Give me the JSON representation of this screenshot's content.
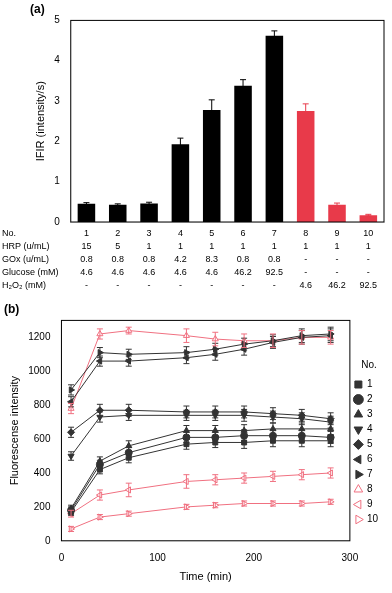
{
  "chart_data": [
    {
      "type": "bar",
      "title": "(a)",
      "y_label": "IFIR (intensity/s)",
      "category_label": "No.",
      "categories": [
        "1",
        "2",
        "3",
        "4",
        "5",
        "6",
        "7",
        "8",
        "9",
        "10"
      ],
      "values": [
        0.45,
        0.43,
        0.46,
        1.93,
        2.78,
        3.38,
        4.62,
        2.75,
        0.43,
        0.17
      ],
      "errors": [
        0.03,
        0.02,
        0.03,
        0.15,
        0.25,
        0.15,
        0.12,
        0.18,
        0.04,
        0.02
      ],
      "colors": [
        "#000000",
        "#000000",
        "#000000",
        "#000000",
        "#000000",
        "#000000",
        "#000000",
        "#e83a4a",
        "#e83a4a",
        "#e83a4a"
      ],
      "ylim": [
        0,
        5
      ],
      "yticks": [
        0,
        1,
        2,
        3,
        4,
        5
      ],
      "grid": false,
      "rows": [
        {
          "label": "HRP (u/mL)",
          "values": [
            15,
            5,
            1,
            1,
            1,
            1,
            1,
            1,
            1,
            1
          ]
        },
        {
          "label": "GOx (u/mL)",
          "values": [
            0.8,
            0.8,
            0.8,
            4.2,
            8.3,
            0.8,
            0.8,
            "-",
            "-",
            "-"
          ]
        },
        {
          "label": "Glucose (mM)",
          "values": [
            4.6,
            4.6,
            4.6,
            4.6,
            4.6,
            46.2,
            92.5,
            "-",
            "-",
            "-"
          ]
        },
        {
          "label": "H₂O₂ (mM)",
          "values": [
            "-",
            "-",
            "-",
            "-",
            "-",
            "-",
            "-",
            4.6,
            46.2,
            92.5
          ]
        }
      ]
    },
    {
      "type": "line",
      "title": "(b)",
      "x_label": "Time (min)",
      "y_label": "Fluorescense intensity",
      "x": [
        10,
        40,
        70,
        130,
        160,
        190,
        220,
        250,
        280
      ],
      "xlim": [
        0,
        300
      ],
      "xticks": [
        0,
        100,
        200,
        300
      ],
      "ylim": [
        0,
        1300
      ],
      "yticks": [
        0,
        200,
        400,
        600,
        800,
        1000,
        1200
      ],
      "grid": false,
      "legend": "right",
      "legend_title": "No.",
      "series": [
        {
          "name": "1",
          "color": "#333333",
          "marker": "square",
          "values": [
            170,
            420,
            490,
            570,
            580,
            580,
            590,
            590,
            590
          ],
          "errors": [
            20,
            25,
            30,
            30,
            30,
            35,
            35,
            35,
            35
          ]
        },
        {
          "name": "2",
          "color": "#333333",
          "marker": "circle",
          "values": [
            180,
            450,
            520,
            610,
            610,
            620,
            620,
            620,
            610
          ],
          "errors": [
            20,
            25,
            30,
            30,
            30,
            35,
            35,
            35,
            35
          ]
        },
        {
          "name": "3",
          "color": "#333333",
          "marker": "triangle-up",
          "values": [
            190,
            470,
            560,
            650,
            650,
            650,
            660,
            660,
            660
          ],
          "errors": [
            20,
            25,
            30,
            30,
            30,
            35,
            35,
            35,
            35
          ]
        },
        {
          "name": "4",
          "color": "#333333",
          "marker": "triangle-down",
          "values": [
            500,
            730,
            740,
            740,
            740,
            740,
            730,
            720,
            700
          ],
          "errors": [
            25,
            30,
            30,
            30,
            30,
            35,
            35,
            35,
            35
          ]
        },
        {
          "name": "5",
          "color": "#333333",
          "marker": "diamond",
          "values": [
            640,
            770,
            770,
            760,
            760,
            760,
            750,
            740,
            720
          ],
          "errors": [
            30,
            35,
            35,
            35,
            35,
            35,
            35,
            35,
            35
          ]
        },
        {
          "name": "6",
          "color": "#333333",
          "marker": "triangle-left",
          "values": [
            820,
            1060,
            1060,
            1080,
            1100,
            1130,
            1170,
            1200,
            1210
          ],
          "errors": [
            30,
            30,
            30,
            35,
            35,
            35,
            35,
            40,
            40
          ]
        },
        {
          "name": "7",
          "color": "#333333",
          "marker": "triangle-right",
          "values": [
            890,
            1110,
            1100,
            1110,
            1130,
            1160,
            1180,
            1210,
            1220
          ],
          "errors": [
            30,
            30,
            30,
            35,
            35,
            35,
            35,
            40,
            40
          ]
        },
        {
          "name": "8",
          "color": "#f07080",
          "marker": "open-triangle-up",
          "values": [
            780,
            1220,
            1240,
            1210,
            1190,
            1180,
            1180,
            1200,
            1200
          ],
          "errors": [
            30,
            30,
            20,
            40,
            40,
            40,
            40,
            40,
            40
          ]
        },
        {
          "name": "9",
          "color": "#f07080",
          "marker": "open-triangle-left",
          "values": [
            160,
            270,
            300,
            350,
            360,
            370,
            380,
            390,
            400
          ],
          "errors": [
            20,
            30,
            40,
            40,
            30,
            30,
            30,
            30,
            30
          ]
        },
        {
          "name": "10",
          "color": "#f07080",
          "marker": "open-triangle-right",
          "values": [
            70,
            140,
            160,
            200,
            210,
            220,
            220,
            220,
            230
          ],
          "errors": [
            15,
            15,
            15,
            15,
            15,
            15,
            15,
            15,
            15
          ]
        }
      ]
    }
  ]
}
